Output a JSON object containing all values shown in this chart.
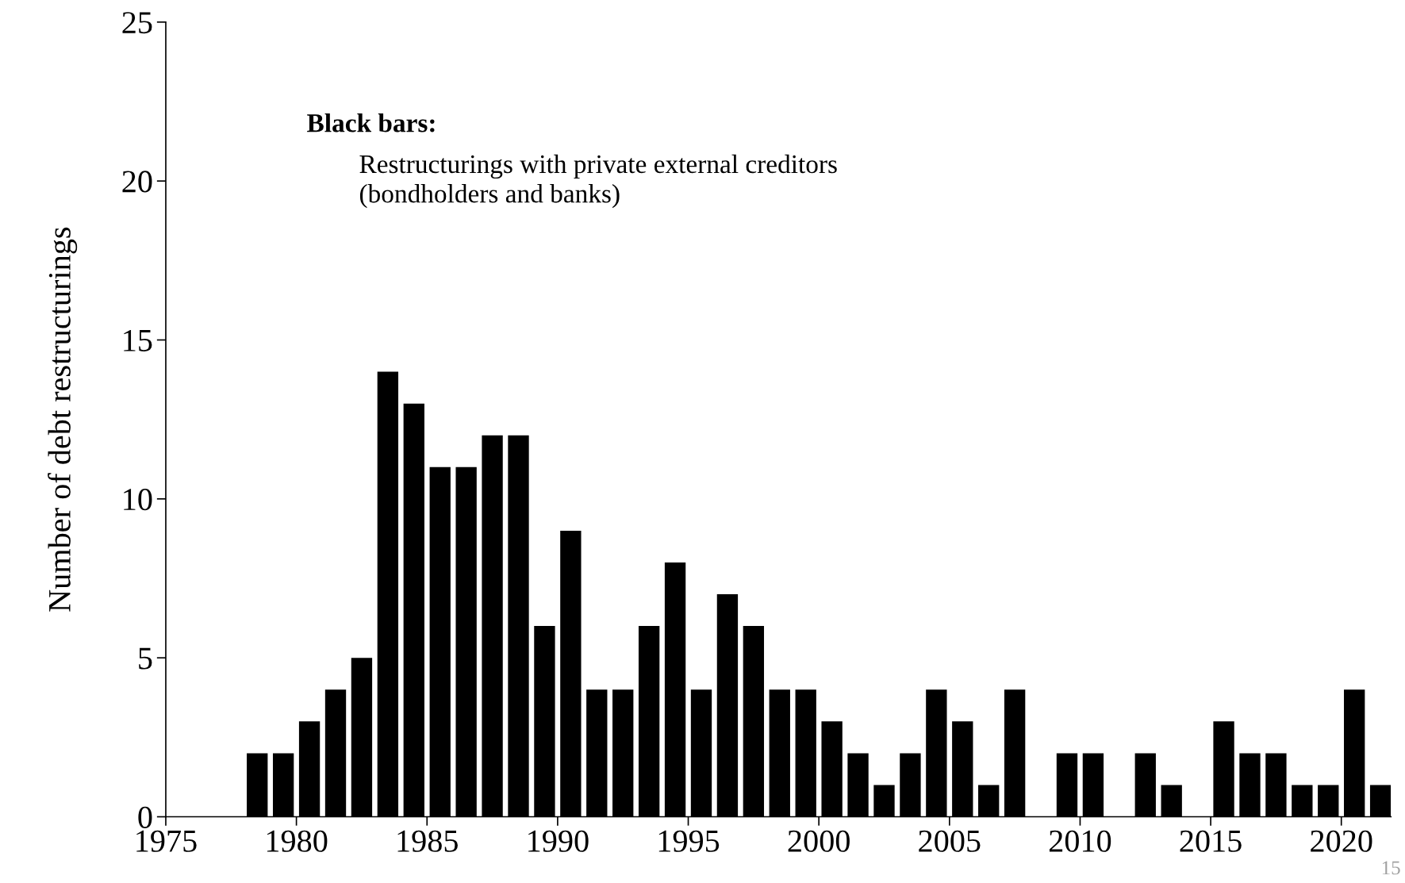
{
  "chart_data": {
    "type": "bar",
    "ylabel": "Number of debt restructurings",
    "x": [
      1978.5,
      1979.5,
      1980.5,
      1981.5,
      1982.5,
      1983.5,
      1984.5,
      1985.5,
      1986.5,
      1987.5,
      1988.5,
      1989.5,
      1990.5,
      1991.5,
      1992.5,
      1993.5,
      1994.5,
      1995.5,
      1996.5,
      1997.5,
      1998.5,
      1999.5,
      2000.5,
      2001.5,
      2002.5,
      2003.5,
      2004.5,
      2005.5,
      2006.5,
      2007.5,
      2008.5,
      2009.5,
      2010.5,
      2011.5,
      2012.5,
      2013.5,
      2014.5,
      2015.5,
      2016.5,
      2017.5,
      2018.5,
      2019.5,
      2020.5,
      2021.5
    ],
    "values": [
      2,
      2,
      3,
      4,
      5,
      14,
      13,
      11,
      11,
      12,
      12,
      6,
      9,
      4,
      4,
      6,
      8,
      4,
      7,
      6,
      4,
      4,
      3,
      2,
      1,
      2,
      4,
      3,
      1,
      4,
      0,
      2,
      2,
      0,
      2,
      1,
      0,
      3,
      2,
      2,
      1,
      1,
      4,
      1
    ],
    "color": "#000000",
    "xlim": [
      1975,
      2021.9
    ],
    "xticks": [
      1975,
      1980,
      1985,
      1990,
      1995,
      2000,
      2005,
      2010,
      2015,
      2020
    ],
    "ylim": [
      0,
      25
    ],
    "yticks": [
      0,
      5,
      10,
      15,
      20,
      25
    ],
    "grid": false,
    "legend": false,
    "annotations": [
      "Black bars:",
      "Restructurings with private external creditors (bondholders and banks)",
      "15"
    ]
  }
}
